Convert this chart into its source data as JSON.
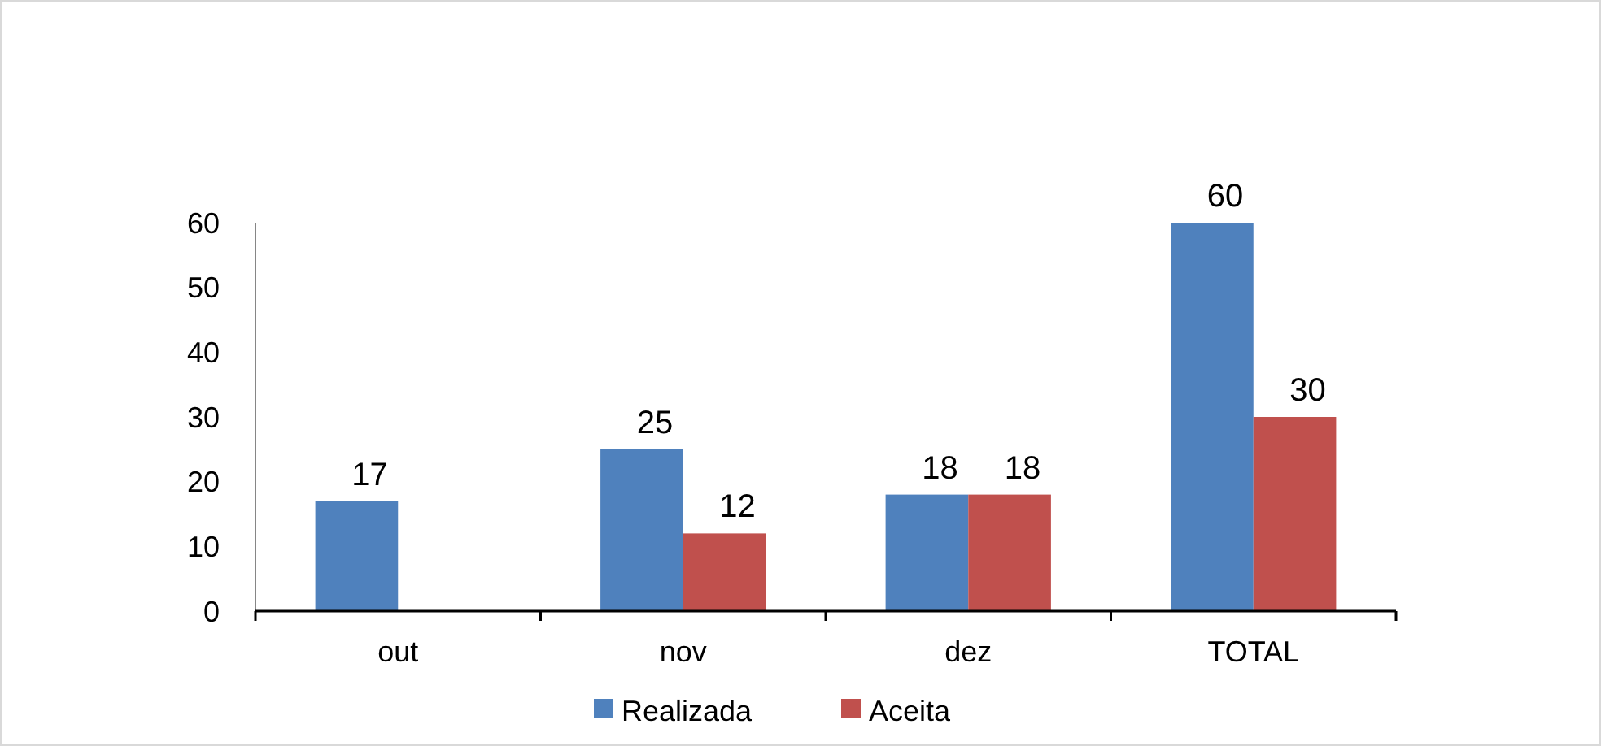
{
  "chart_data": {
    "type": "bar",
    "categories": [
      "out",
      "nov",
      "dez",
      "TOTAL"
    ],
    "series": [
      {
        "name": "Realizada",
        "color": "#4f81bd",
        "values": [
          17,
          25,
          18,
          60
        ]
      },
      {
        "name": "Aceita",
        "color": "#c0504d",
        "values": [
          null,
          12,
          18,
          30
        ]
      }
    ],
    "ylim": [
      0,
      60
    ],
    "yticks": [
      0,
      10,
      20,
      30,
      40,
      50,
      60
    ],
    "data_labels": true,
    "legend": "bottom",
    "grid": false
  }
}
